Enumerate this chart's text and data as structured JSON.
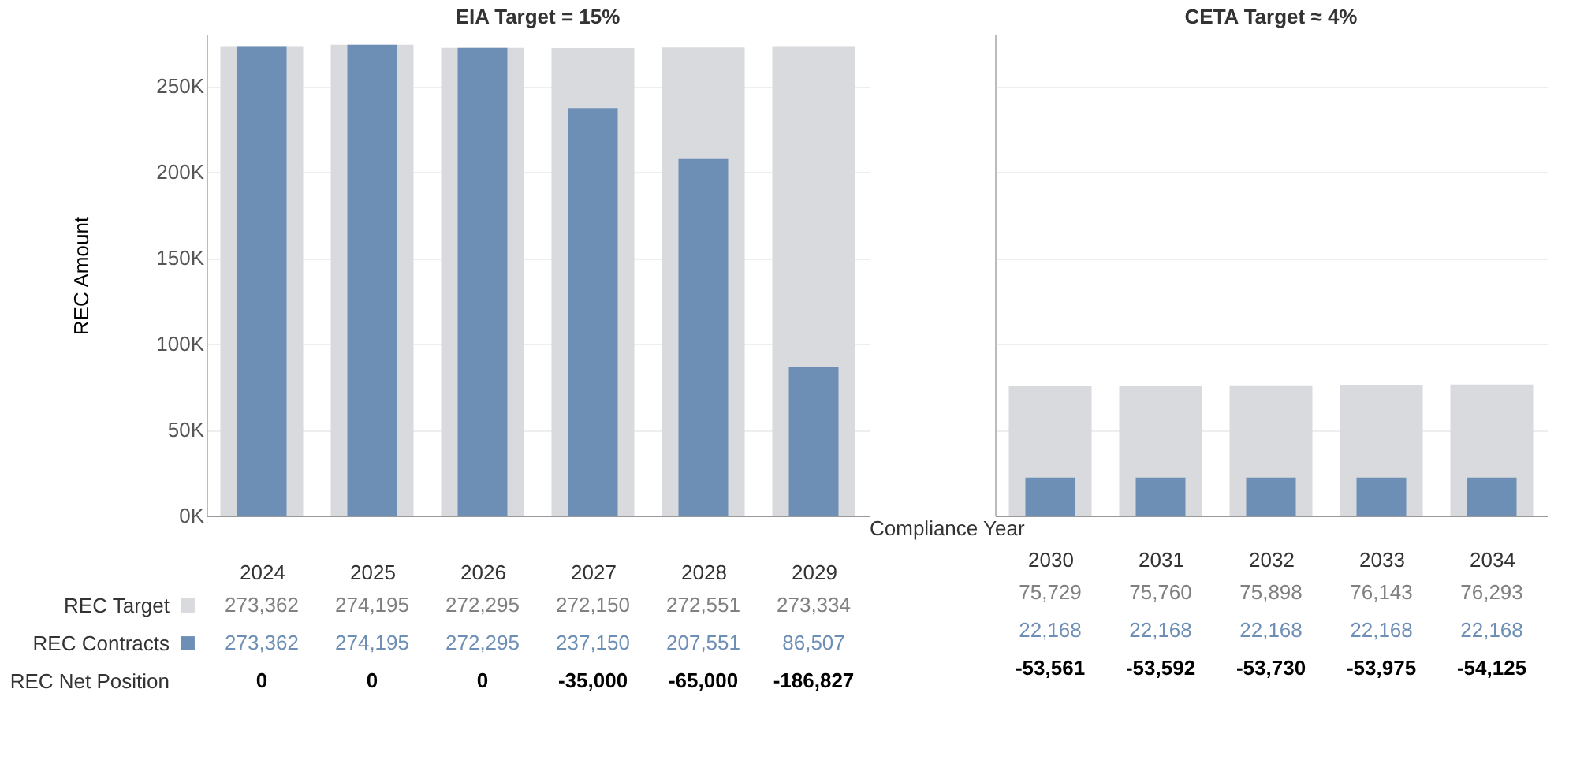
{
  "chart_data": [
    {
      "type": "bar",
      "title": "EIA Target = 15%",
      "ylabel": "REC Amount",
      "categories": [
        "2024",
        "2025",
        "2026",
        "2027",
        "2028",
        "2029"
      ],
      "series": [
        {
          "name": "REC Target",
          "color": "#d9dadd",
          "values": [
            273362,
            274195,
            272295,
            272150,
            272551,
            273334
          ],
          "value_labels": [
            "273,362",
            "274,195",
            "272,295",
            "272,150",
            "272,551",
            "273,334"
          ]
        },
        {
          "name": "REC Contracts",
          "color": "#6e8fb5",
          "values": [
            273362,
            274195,
            272295,
            237150,
            207551,
            86507
          ],
          "value_labels": [
            "273,362",
            "274,195",
            "272,295",
            "237,150",
            "207,551",
            "86,507"
          ]
        }
      ],
      "ylim": [
        0,
        280000
      ],
      "yticks": [
        {
          "value": 0,
          "label": "0K"
        },
        {
          "value": 50000,
          "label": "50K"
        },
        {
          "value": 100000,
          "label": "100K"
        },
        {
          "value": 150000,
          "label": "150K"
        },
        {
          "value": 200000,
          "label": "200K"
        },
        {
          "value": 250000,
          "label": "250K"
        }
      ],
      "grid": "y",
      "legend": "bottom left",
      "annotations": [
        "REC Net Position",
        "0",
        "0",
        "0",
        "-35,000",
        "-65,000",
        "-186,827"
      ]
    },
    {
      "type": "bar",
      "title": "CETA Target ≈ 4%",
      "xlabel": "Compliance Year",
      "categories": [
        "2030",
        "2031",
        "2032",
        "2033",
        "2034"
      ],
      "series": [
        {
          "color": "#d9dadd",
          "values": [
            75729,
            75760,
            75898,
            76143,
            76293
          ],
          "value_labels": [
            "75,729",
            "75,760",
            "75,898",
            "76,143",
            "76,293"
          ]
        },
        {
          "color": "#6e8fb5",
          "values": [
            22168,
            22168,
            22168,
            22168,
            22168
          ],
          "value_labels": [
            "22,168",
            "22,168",
            "22,168",
            "22,168",
            "22,168"
          ]
        }
      ],
      "ylim": [
        0,
        280000
      ],
      "yticks": [
        {
          "value": 0,
          "label": null
        },
        {
          "value": 50000,
          "label": null
        },
        {
          "value": 100000,
          "label": null
        },
        {
          "value": 150000,
          "label": null
        },
        {
          "value": 200000,
          "label": null
        },
        {
          "value": 250000,
          "label": null
        }
      ],
      "grid": "y",
      "tick_labels": "x",
      "annotations": [
        "-53,561",
        "-53,592",
        "-53,730",
        "-53,975",
        "-54,125"
      ]
    }
  ]
}
